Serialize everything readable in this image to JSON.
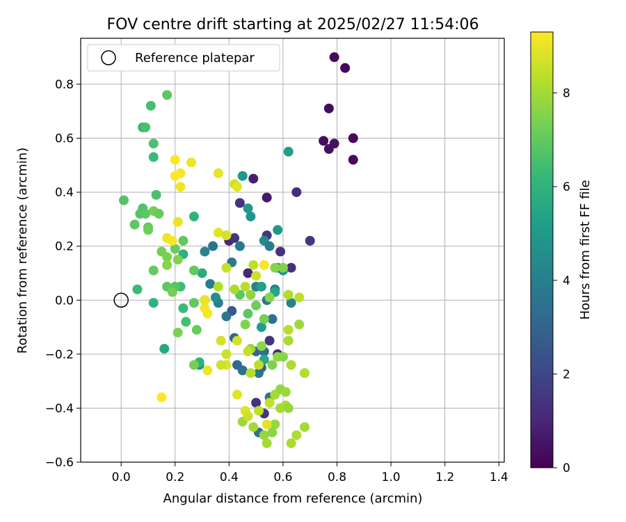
{
  "chart_data": {
    "type": "scatter",
    "title": "FOV centre drift starting at 2025/02/27 11:54:06",
    "xlabel": "Angular distance from reference (arcmin)",
    "ylabel": "Rotation from reference (arcmin)",
    "xlim": [
      -0.15,
      1.42
    ],
    "ylim": [
      -0.6,
      0.97
    ],
    "xticks": [
      0.0,
      0.2,
      0.4,
      0.6,
      0.8,
      1.0,
      1.2,
      1.4
    ],
    "xtick_labels": [
      "0.0",
      "0.2",
      "0.4",
      "0.6",
      "0.8",
      "1.0",
      "1.2",
      "1.4"
    ],
    "yticks": [
      -0.6,
      -0.4,
      -0.2,
      0.0,
      0.2,
      0.4,
      0.6,
      0.8
    ],
    "ytick_labels": [
      "−0.6",
      "−0.4",
      "−0.2",
      "0.0",
      "0.2",
      "0.4",
      "0.6",
      "0.8"
    ],
    "grid": true,
    "legend": {
      "position": "upper-left",
      "entries": [
        "Reference platepar"
      ]
    },
    "reference_point": {
      "x": 0.0,
      "y": 0.0
    },
    "colorbar": {
      "label": "Hours from first FF file",
      "colormap": "viridis",
      "range": [
        0,
        9.3
      ],
      "ticks": [
        0,
        2,
        4,
        6,
        8
      ],
      "tick_labels": [
        "0",
        "2",
        "4",
        "6",
        "8"
      ]
    },
    "colormap_stops": [
      "#440154",
      "#482878",
      "#3e4989",
      "#31688e",
      "#26828e",
      "#1f9e89",
      "#35b779",
      "#6ece58",
      "#b5de2b",
      "#fde725"
    ],
    "points": [
      {
        "x": 0.79,
        "y": 0.9,
        "h": 0.2
      },
      {
        "x": 0.83,
        "y": 0.86,
        "h": 0.2
      },
      {
        "x": 0.77,
        "y": 0.71,
        "h": 0.3
      },
      {
        "x": 0.75,
        "y": 0.59,
        "h": 0.3
      },
      {
        "x": 0.77,
        "y": 0.56,
        "h": 0.4
      },
      {
        "x": 0.79,
        "y": 0.58,
        "h": 0.4
      },
      {
        "x": 0.86,
        "y": 0.6,
        "h": 0.3
      },
      {
        "x": 0.86,
        "y": 0.52,
        "h": 0.3
      },
      {
        "x": 0.49,
        "y": 0.45,
        "h": 0.8
      },
      {
        "x": 0.54,
        "y": 0.38,
        "h": 0.6
      },
      {
        "x": 0.65,
        "y": 0.4,
        "h": 1.2
      },
      {
        "x": 0.44,
        "y": 0.36,
        "h": 1.3
      },
      {
        "x": 0.7,
        "y": 0.22,
        "h": 1.5
      },
      {
        "x": 0.4,
        "y": 0.22,
        "h": 1.0
      },
      {
        "x": 0.42,
        "y": 0.23,
        "h": 1.5
      },
      {
        "x": 0.54,
        "y": 0.24,
        "h": 1.5
      },
      {
        "x": 0.59,
        "y": 0.18,
        "h": 1.4
      },
      {
        "x": 0.63,
        "y": 0.12,
        "h": 1.3
      },
      {
        "x": 0.47,
        "y": 0.1,
        "h": 1.0
      },
      {
        "x": 0.55,
        "y": -0.15,
        "h": 1.4
      },
      {
        "x": 0.58,
        "y": -0.2,
        "h": 1.0
      },
      {
        "x": 0.53,
        "y": -0.42,
        "h": 1.5
      },
      {
        "x": 0.5,
        "y": -0.38,
        "h": 1.3
      },
      {
        "x": 0.41,
        "y": -0.04,
        "h": 2.6
      },
      {
        "x": 0.42,
        "y": -0.14,
        "h": 2.9
      },
      {
        "x": 0.43,
        "y": -0.24,
        "h": 3.2
      },
      {
        "x": 0.45,
        "y": -0.26,
        "h": 3.4
      },
      {
        "x": 0.51,
        "y": -0.27,
        "h": 3.7
      },
      {
        "x": 0.51,
        "y": -0.49,
        "h": 3.4
      },
      {
        "x": 0.55,
        "y": -0.36,
        "h": 3.6
      },
      {
        "x": 0.52,
        "y": -0.25,
        "h": 3.0
      },
      {
        "x": 0.53,
        "y": -0.19,
        "h": 3.3
      },
      {
        "x": 0.5,
        "y": -0.19,
        "h": 3.1
      },
      {
        "x": 0.56,
        "y": -0.07,
        "h": 3.5
      },
      {
        "x": 0.54,
        "y": 0.0,
        "h": 3.8
      },
      {
        "x": 0.39,
        "y": -0.06,
        "h": 3.6
      },
      {
        "x": 0.36,
        "y": -0.01,
        "h": 4.0
      },
      {
        "x": 0.33,
        "y": 0.06,
        "h": 3.9
      },
      {
        "x": 0.31,
        "y": 0.18,
        "h": 4.2
      },
      {
        "x": 0.34,
        "y": 0.2,
        "h": 3.6
      },
      {
        "x": 0.41,
        "y": 0.14,
        "h": 3.8
      },
      {
        "x": 0.44,
        "y": 0.2,
        "h": 3.7
      },
      {
        "x": 0.53,
        "y": 0.22,
        "h": 4.4
      },
      {
        "x": 0.55,
        "y": 0.2,
        "h": 3.9
      },
      {
        "x": 0.58,
        "y": 0.12,
        "h": 4.6
      },
      {
        "x": 0.6,
        "y": 0.11,
        "h": 4.8
      },
      {
        "x": 0.63,
        "y": -0.01,
        "h": 4.2
      },
      {
        "x": 0.57,
        "y": 0.04,
        "h": 4.1
      },
      {
        "x": 0.5,
        "y": 0.05,
        "h": 4.0
      },
      {
        "x": 0.48,
        "y": 0.31,
        "h": 4.8
      },
      {
        "x": 0.47,
        "y": 0.34,
        "h": 5.0
      },
      {
        "x": 0.45,
        "y": 0.46,
        "h": 5.0
      },
      {
        "x": 0.58,
        "y": 0.26,
        "h": 5.0
      },
      {
        "x": 0.62,
        "y": 0.55,
        "h": 5.2
      },
      {
        "x": 0.29,
        "y": -0.24,
        "h": 4.8
      },
      {
        "x": 0.52,
        "y": 0.05,
        "h": 5.3
      },
      {
        "x": 0.53,
        "y": -0.22,
        "h": 5.6
      },
      {
        "x": 0.35,
        "y": 0.01,
        "h": 4.5
      },
      {
        "x": 0.52,
        "y": -0.1,
        "h": 5.2
      },
      {
        "x": 0.57,
        "y": 0.03,
        "h": 5.5
      },
      {
        "x": 0.31,
        "y": 0.0,
        "h": 5.2
      },
      {
        "x": 0.3,
        "y": 0.1,
        "h": 5.7
      },
      {
        "x": 0.23,
        "y": 0.17,
        "h": 5.9
      },
      {
        "x": 0.27,
        "y": 0.31,
        "h": 6.0
      },
      {
        "x": 0.16,
        "y": -0.18,
        "h": 5.6
      },
      {
        "x": 0.29,
        "y": -0.23,
        "h": 6.0
      },
      {
        "x": 0.23,
        "y": -0.03,
        "h": 6.3
      },
      {
        "x": 0.24,
        "y": -0.08,
        "h": 6.5
      },
      {
        "x": 0.12,
        "y": -0.01,
        "h": 6.0
      },
      {
        "x": 0.06,
        "y": 0.04,
        "h": 6.3
      },
      {
        "x": 0.22,
        "y": 0.05,
        "h": 6.4
      },
      {
        "x": 0.2,
        "y": 0.05,
        "h": 6.8
      },
      {
        "x": 0.17,
        "y": 0.05,
        "h": 6.9
      },
      {
        "x": 0.12,
        "y": 0.11,
        "h": 7.0
      },
      {
        "x": 0.2,
        "y": 0.19,
        "h": 7.1
      },
      {
        "x": 0.23,
        "y": 0.22,
        "h": 7.0
      },
      {
        "x": 0.12,
        "y": 0.53,
        "h": 6.3
      },
      {
        "x": 0.12,
        "y": 0.58,
        "h": 6.6
      },
      {
        "x": 0.11,
        "y": 0.72,
        "h": 6.5
      },
      {
        "x": 0.08,
        "y": 0.64,
        "h": 6.1
      },
      {
        "x": 0.17,
        "y": 0.76,
        "h": 6.9
      },
      {
        "x": 0.09,
        "y": 0.64,
        "h": 6.6
      },
      {
        "x": 0.13,
        "y": 0.39,
        "h": 6.6
      },
      {
        "x": 0.01,
        "y": 0.37,
        "h": 6.8
      },
      {
        "x": 0.08,
        "y": 0.34,
        "h": 6.7
      },
      {
        "x": 0.05,
        "y": 0.28,
        "h": 6.9
      },
      {
        "x": 0.07,
        "y": 0.32,
        "h": 6.8
      },
      {
        "x": 0.09,
        "y": 0.32,
        "h": 6.9
      },
      {
        "x": 0.1,
        "y": 0.27,
        "h": 7.0
      },
      {
        "x": 0.1,
        "y": 0.26,
        "h": 7.2
      },
      {
        "x": 0.12,
        "y": 0.33,
        "h": 7.3
      },
      {
        "x": 0.14,
        "y": 0.32,
        "h": 7.1
      },
      {
        "x": 0.15,
        "y": 0.18,
        "h": 7.3
      },
      {
        "x": 0.17,
        "y": 0.16,
        "h": 7.4
      },
      {
        "x": 0.17,
        "y": 0.13,
        "h": 7.6
      },
      {
        "x": 0.19,
        "y": 0.03,
        "h": 7.3
      },
      {
        "x": 0.21,
        "y": 0.15,
        "h": 7.5
      },
      {
        "x": 0.21,
        "y": -0.12,
        "h": 7.4
      },
      {
        "x": 0.27,
        "y": 0.11,
        "h": 7.0
      },
      {
        "x": 0.27,
        "y": -0.01,
        "h": 7.0
      },
      {
        "x": 0.28,
        "y": -0.11,
        "h": 7.1
      },
      {
        "x": 0.27,
        "y": -0.24,
        "h": 7.3
      },
      {
        "x": 0.44,
        "y": 0.02,
        "h": 6.9
      },
      {
        "x": 0.47,
        "y": -0.05,
        "h": 6.9
      },
      {
        "x": 0.5,
        "y": -0.02,
        "h": 7.2
      },
      {
        "x": 0.53,
        "y": -0.07,
        "h": 7.3
      },
      {
        "x": 0.46,
        "y": -0.09,
        "h": 7.5
      },
      {
        "x": 0.55,
        "y": 0.01,
        "h": 7.6
      },
      {
        "x": 0.57,
        "y": 0.12,
        "h": 7.6
      },
      {
        "x": 0.6,
        "y": 0.12,
        "h": 7.5
      },
      {
        "x": 0.48,
        "y": 0.02,
        "h": 7.7
      },
      {
        "x": 0.52,
        "y": -0.17,
        "h": 7.7
      },
      {
        "x": 0.48,
        "y": -0.18,
        "h": 7.8
      },
      {
        "x": 0.56,
        "y": -0.24,
        "h": 7.5
      },
      {
        "x": 0.58,
        "y": -0.21,
        "h": 7.7
      },
      {
        "x": 0.6,
        "y": -0.21,
        "h": 7.6
      },
      {
        "x": 0.57,
        "y": -0.46,
        "h": 7.8
      },
      {
        "x": 0.56,
        "y": -0.49,
        "h": 7.7
      },
      {
        "x": 0.53,
        "y": -0.5,
        "h": 7.8
      },
      {
        "x": 0.49,
        "y": -0.47,
        "h": 8.0
      },
      {
        "x": 0.45,
        "y": -0.45,
        "h": 7.9
      },
      {
        "x": 0.57,
        "y": -0.35,
        "h": 8.0
      },
      {
        "x": 0.59,
        "y": -0.33,
        "h": 7.8
      },
      {
        "x": 0.61,
        "y": -0.34,
        "h": 7.9
      },
      {
        "x": 0.59,
        "y": -0.4,
        "h": 8.0
      },
      {
        "x": 0.61,
        "y": -0.39,
        "h": 8.1
      },
      {
        "x": 0.62,
        "y": -0.4,
        "h": 7.8
      },
      {
        "x": 0.54,
        "y": -0.53,
        "h": 8.0
      },
      {
        "x": 0.63,
        "y": -0.53,
        "h": 8.1
      },
      {
        "x": 0.65,
        "y": -0.5,
        "h": 8.2
      },
      {
        "x": 0.68,
        "y": -0.47,
        "h": 8.0
      },
      {
        "x": 0.68,
        "y": -0.27,
        "h": 8.2
      },
      {
        "x": 0.63,
        "y": -0.24,
        "h": 8.1
      },
      {
        "x": 0.62,
        "y": -0.15,
        "h": 8.1
      },
      {
        "x": 0.62,
        "y": -0.11,
        "h": 8.3
      },
      {
        "x": 0.66,
        "y": -0.09,
        "h": 7.9
      },
      {
        "x": 0.66,
        "y": 0.01,
        "h": 8.4
      },
      {
        "x": 0.62,
        "y": 0.02,
        "h": 8.2
      },
      {
        "x": 0.36,
        "y": 0.05,
        "h": 8.2
      },
      {
        "x": 0.39,
        "y": 0.12,
        "h": 8.5
      },
      {
        "x": 0.42,
        "y": 0.04,
        "h": 8.1
      },
      {
        "x": 0.46,
        "y": 0.05,
        "h": 8.3
      },
      {
        "x": 0.49,
        "y": 0.13,
        "h": 8.4
      },
      {
        "x": 0.5,
        "y": 0.09,
        "h": 8.6
      },
      {
        "x": 0.53,
        "y": 0.13,
        "h": 8.8
      },
      {
        "x": 0.48,
        "y": -0.27,
        "h": 8.3
      },
      {
        "x": 0.47,
        "y": -0.19,
        "h": 8.5
      },
      {
        "x": 0.43,
        "y": -0.15,
        "h": 8.7
      },
      {
        "x": 0.51,
        "y": -0.24,
        "h": 8.4
      },
      {
        "x": 0.39,
        "y": -0.2,
        "h": 8.6
      },
      {
        "x": 0.39,
        "y": -0.24,
        "h": 8.8
      },
      {
        "x": 0.37,
        "y": -0.24,
        "h": 8.6
      },
      {
        "x": 0.37,
        "y": -0.15,
        "h": 8.7
      },
      {
        "x": 0.43,
        "y": -0.35,
        "h": 8.9
      },
      {
        "x": 0.46,
        "y": -0.41,
        "h": 8.8
      },
      {
        "x": 0.47,
        "y": -0.43,
        "h": 8.6
      },
      {
        "x": 0.51,
        "y": -0.41,
        "h": 8.4
      },
      {
        "x": 0.54,
        "y": -0.46,
        "h": 8.9
      },
      {
        "x": 0.55,
        "y": -0.38,
        "h": 8.5
      },
      {
        "x": 0.32,
        "y": -0.26,
        "h": 9.1
      },
      {
        "x": 0.31,
        "y": -0.03,
        "h": 9.2
      },
      {
        "x": 0.31,
        "y": 0.0,
        "h": 9.0
      },
      {
        "x": 0.32,
        "y": -0.05,
        "h": 9.2
      },
      {
        "x": 0.36,
        "y": 0.25,
        "h": 8.9
      },
      {
        "x": 0.39,
        "y": 0.24,
        "h": 8.7
      },
      {
        "x": 0.42,
        "y": 0.43,
        "h": 8.6
      },
      {
        "x": 0.43,
        "y": 0.42,
        "h": 8.9
      },
      {
        "x": 0.36,
        "y": 0.47,
        "h": 9.0
      },
      {
        "x": 0.26,
        "y": 0.51,
        "h": 9.1
      },
      {
        "x": 0.22,
        "y": 0.47,
        "h": 9.2
      },
      {
        "x": 0.2,
        "y": 0.46,
        "h": 9.3
      },
      {
        "x": 0.2,
        "y": 0.52,
        "h": 9.3
      },
      {
        "x": 0.22,
        "y": 0.42,
        "h": 9.1
      },
      {
        "x": 0.21,
        "y": 0.29,
        "h": 9.0
      },
      {
        "x": 0.17,
        "y": 0.23,
        "h": 9.1
      },
      {
        "x": 0.19,
        "y": 0.22,
        "h": 9.2
      },
      {
        "x": 0.15,
        "y": -0.36,
        "h": 9.3
      },
      {
        "x": 0.53,
        "y": 0.13,
        "h": 9.2
      }
    ]
  }
}
